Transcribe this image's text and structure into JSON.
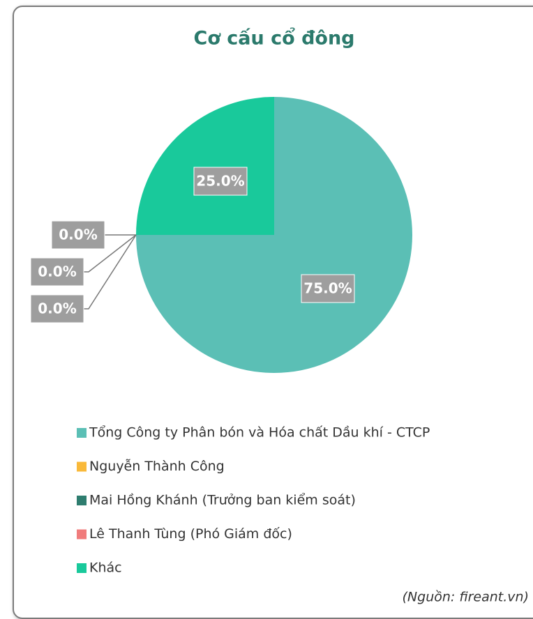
{
  "chart_data": {
    "type": "pie",
    "title": "Cơ cấu cổ đông",
    "categories": [
      "Tổng Công ty Phân bón và Hóa chất Dầu khí - CTCP",
      "Nguyễn Thành Công",
      "Mai Hồng Khánh (Trưởng ban kiểm soát)",
      "Lê Thanh Tùng (Phó Giám đốc)",
      "Khác"
    ],
    "values": [
      75,
      0,
      0,
      0,
      25
    ],
    "value_labels": [
      "75.0%",
      "0.0%",
      "0.0%",
      "0.0%",
      "25.0%"
    ],
    "colors": [
      "#5bbfb5",
      "#f9b93a",
      "#2e7d6f",
      "#f07c7c",
      "#19c99b"
    ],
    "source": "(Nguồn: fireant.vn)"
  }
}
